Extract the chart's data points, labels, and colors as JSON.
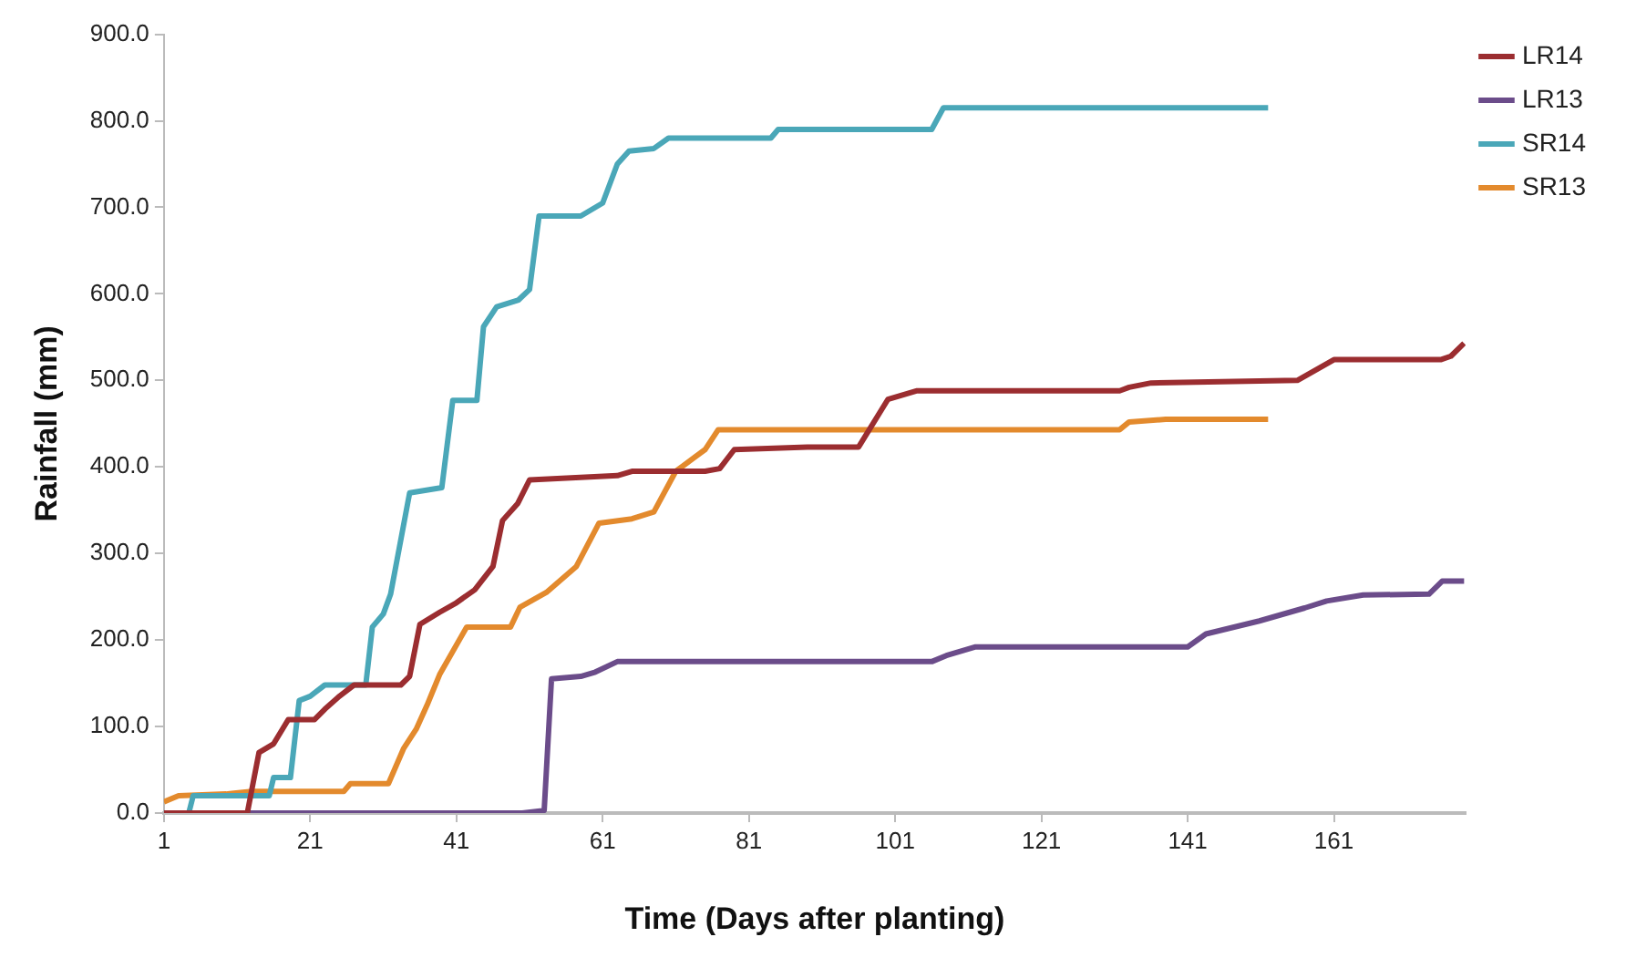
{
  "chart_data": {
    "type": "line",
    "xlabel": "Time (Days after planting)",
    "ylabel": "Rainfall (mm)",
    "xlim": [
      1,
      179
    ],
    "xticks": [
      1,
      21,
      41,
      61,
      81,
      101,
      121,
      141,
      161
    ],
    "ylim": [
      0,
      900
    ],
    "yticks": [
      {
        "value": 0,
        "label": "0.0"
      },
      {
        "value": 100,
        "label": "100.0"
      },
      {
        "value": 200,
        "label": "200.0"
      },
      {
        "value": 300,
        "label": "300.0"
      },
      {
        "value": 400,
        "label": "400.0"
      },
      {
        "value": 500,
        "label": "500.0"
      },
      {
        "value": 600,
        "label": "600.0"
      },
      {
        "value": 700,
        "label": "700.0"
      },
      {
        "value": 800,
        "label": "800.0"
      },
      {
        "value": 900,
        "label": "900.0"
      }
    ],
    "grid": false,
    "legend": "top right",
    "marker": "none",
    "line_style": "solid",
    "series": [
      {
        "name": "LR14",
        "color": "#9b2d30",
        "x": [
          1,
          12.4,
          14,
          16,
          18,
          21.6,
          23,
          25,
          27,
          33.4,
          34.6,
          36,
          38.7,
          41,
          43.5,
          46,
          47.3,
          49.4,
          51,
          63,
          65,
          75,
          77,
          79,
          89,
          96,
          100,
          104,
          131.7,
          133,
          136,
          156,
          161,
          175.6,
          177,
          178.8
        ],
        "values": [
          0,
          0,
          70,
          80,
          108,
          108,
          120,
          135,
          148,
          148,
          158,
          218,
          232,
          243,
          258,
          285,
          338,
          358,
          385,
          390,
          395,
          395,
          398,
          420,
          423,
          423,
          478,
          488,
          488,
          492,
          497,
          500,
          524,
          524,
          528,
          543
        ]
      },
      {
        "name": "LR13",
        "color": "#6b4c8a",
        "x": [
          1,
          50,
          53,
          54,
          58,
          60,
          63,
          106,
          108,
          112,
          141,
          143.5,
          150.8,
          157,
          160,
          165,
          174,
          175.8,
          178.8
        ],
        "values": [
          0,
          0,
          3,
          155,
          158,
          163,
          175,
          175,
          182,
          192,
          192,
          207,
          222,
          237,
          245,
          252,
          253,
          268,
          268
        ]
      },
      {
        "name": "SR14",
        "color": "#4aa7b8",
        "x": [
          1,
          4.4,
          5,
          15.4,
          16,
          18.3,
          19.5,
          21,
          23,
          28.6,
          29.5,
          31,
          32,
          34.6,
          39,
          40.5,
          43.8,
          44.7,
          46.5,
          49.5,
          51,
          52.3,
          58,
          61,
          63,
          64.6,
          68,
          70,
          84,
          85,
          106,
          107.6,
          152
        ],
        "values": [
          0,
          0,
          20,
          20,
          41,
          41,
          130,
          135,
          148,
          148,
          215,
          230,
          253,
          370,
          376,
          477,
          477,
          562,
          585,
          593,
          605,
          690,
          690,
          705,
          750,
          765,
          768,
          780,
          780,
          790,
          790,
          815,
          815
        ]
      },
      {
        "name": "SR13",
        "color": "#e38a2d",
        "x": [
          1,
          3,
          9.5,
          13,
          25.6,
          26.5,
          31.7,
          33.8,
          35.5,
          37,
          38.7,
          42.4,
          48.4,
          49.7,
          53.3,
          57.4,
          60.5,
          65,
          68,
          71,
          75,
          76.8,
          131.7,
          133,
          138,
          152
        ],
        "values": [
          13,
          20,
          22,
          25,
          25,
          34,
          34,
          75,
          97,
          125,
          160,
          215,
          215,
          238,
          255,
          285,
          335,
          340,
          348,
          395,
          420,
          443,
          443,
          452,
          455,
          455
        ]
      }
    ]
  }
}
